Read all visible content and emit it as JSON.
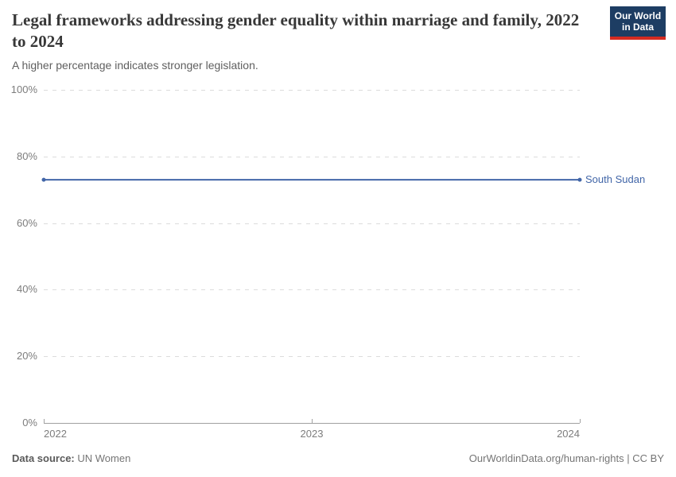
{
  "header": {
    "title": "Legal frameworks addressing gender equality within marriage and family, 2022 to 2024",
    "subtitle": "A higher percentage indicates stronger legislation.",
    "logo": {
      "line1": "Our World",
      "line2": "in Data"
    }
  },
  "chart_data": {
    "type": "line",
    "title": "Legal frameworks addressing gender equality within marriage and family, 2022 to 2024",
    "subtitle": "A higher percentage indicates stronger legislation.",
    "x": [
      2022,
      2023,
      2024
    ],
    "xtick_labels": [
      "2022",
      "2023",
      "2024"
    ],
    "series": [
      {
        "name": "South Sudan",
        "values": [
          73,
          73,
          73
        ],
        "color": "#4266a8"
      }
    ],
    "xlabel": "",
    "ylabel": "",
    "ylim": [
      0,
      100
    ],
    "yticks": [
      0,
      20,
      40,
      60,
      80,
      100
    ],
    "ytick_labels": [
      "0%",
      "20%",
      "40%",
      "60%",
      "80%",
      "100%"
    ],
    "grid": "horizontal-dashed",
    "legend_position": "end-of-line-label"
  },
  "footer": {
    "source_label": "Data source:",
    "source_value": "UN Women",
    "link": "OurWorldinData.org/human-rights",
    "divider": "|",
    "license": "CC BY"
  },
  "colors": {
    "line": "#4266a8",
    "grid": "#dcdcdc",
    "axis": "#a1a1a1",
    "tick_text": "#7d7d7d",
    "title": "#383838",
    "subtitle": "#5f5f5f",
    "logo_bg": "#1d3d63",
    "logo_stripe": "#d42b21"
  }
}
